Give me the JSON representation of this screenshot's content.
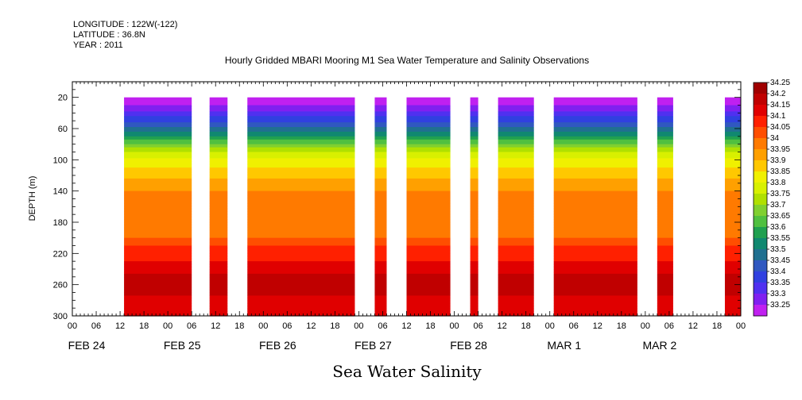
{
  "header": {
    "lines": [
      "LONGITUDE : 122W(-122)",
      "LATITUDE : 36.8N",
      "YEAR : 2011"
    ],
    "title": "Hourly Gridded MBARI Mooring M1 Sea Water Temperature and Salinity Observations"
  },
  "chart_data": {
    "type": "heatmap",
    "title": "Hourly Gridded MBARI Mooring M1 Sea Water Temperature and Salinity Observations",
    "xlabel": "",
    "ylabel": "DEPTH (m)",
    "bottom_label": "Sea Water Salinity",
    "x_unit": "hour since 2011-02-24 00:00",
    "xlim": [
      0,
      168
    ],
    "ylim": [
      0,
      300
    ],
    "y_inverted": true,
    "y_ticks": [
      20,
      60,
      100,
      140,
      180,
      220,
      260,
      300
    ],
    "y_tick_labels": [
      "20",
      "60",
      "100",
      "140",
      "180",
      "220",
      "260",
      "300"
    ],
    "x_tick_labels": [
      "00",
      "06",
      "12",
      "18",
      "00",
      "06",
      "12",
      "18",
      "00",
      "06",
      "12",
      "18",
      "00",
      "06",
      "12",
      "18",
      "00",
      "06",
      "12",
      "18",
      "00",
      "06",
      "12",
      "18",
      "00",
      "06",
      "12",
      "18",
      "00"
    ],
    "day_labels": [
      {
        "label": "FEB 24",
        "hour": 6
      },
      {
        "label": "FEB 25",
        "hour": 30
      },
      {
        "label": "FEB 26",
        "hour": 54
      },
      {
        "label": "FEB 27",
        "hour": 78
      },
      {
        "label": "FEB 28",
        "hour": 102
      },
      {
        "label": "MAR  1",
        "hour": 126
      },
      {
        "label": "MAR  2",
        "hour": 150
      }
    ],
    "data_depth_range": [
      20,
      300
    ],
    "data_segments": [
      {
        "start": 13,
        "end": 30
      },
      {
        "start": 34.5,
        "end": 39
      },
      {
        "start": 44,
        "end": 71
      },
      {
        "start": 76,
        "end": 79
      },
      {
        "start": 84,
        "end": 95
      },
      {
        "start": 100,
        "end": 102
      },
      {
        "start": 107,
        "end": 116
      },
      {
        "start": 121,
        "end": 142
      },
      {
        "start": 147,
        "end": 151
      },
      {
        "start": 164,
        "end": 168
      }
    ],
    "salinity_profile": {
      "depth": [
        20,
        30,
        40,
        50,
        60,
        70,
        80,
        90,
        100,
        110,
        120,
        130,
        140,
        160,
        200,
        210,
        220,
        240,
        250,
        270,
        280,
        300
      ],
      "salinity": [
        33.26,
        33.3,
        33.36,
        33.44,
        33.52,
        33.6,
        33.7,
        33.8,
        33.86,
        33.9,
        33.94,
        33.97,
        34.0,
        34.03,
        34.05,
        34.1,
        34.13,
        34.17,
        34.22,
        34.22,
        34.17,
        34.15
      ]
    },
    "colorbar": {
      "levels": [
        34.25,
        34.2,
        34.15,
        34.1,
        34.05,
        34,
        33.95,
        33.9,
        33.85,
        33.8,
        33.75,
        33.7,
        33.65,
        33.6,
        33.55,
        33.5,
        33.45,
        33.4,
        33.35,
        33.3,
        33.25
      ],
      "labels": [
        "34.25",
        "34.2",
        "34.15",
        "34.1",
        "34.05",
        "34",
        "33.95",
        "33.9",
        "33.85",
        "33.8",
        "33.75",
        "33.7",
        "33.65",
        "33.6",
        "33.55",
        "33.5",
        "33.45",
        "33.4",
        "33.35",
        "33.3",
        "33.25"
      ],
      "colors": [
        "#a00000",
        "#c00000",
        "#e00000",
        "#ff2000",
        "#ff4e00",
        "#ff7a00",
        "#ffa000",
        "#ffc800",
        "#f0f000",
        "#d8f000",
        "#b0e000",
        "#80d030",
        "#50c040",
        "#20a050",
        "#108870",
        "#207090",
        "#3058c0",
        "#3040e0",
        "#5030f0",
        "#8020f0",
        "#c020f0"
      ]
    }
  }
}
